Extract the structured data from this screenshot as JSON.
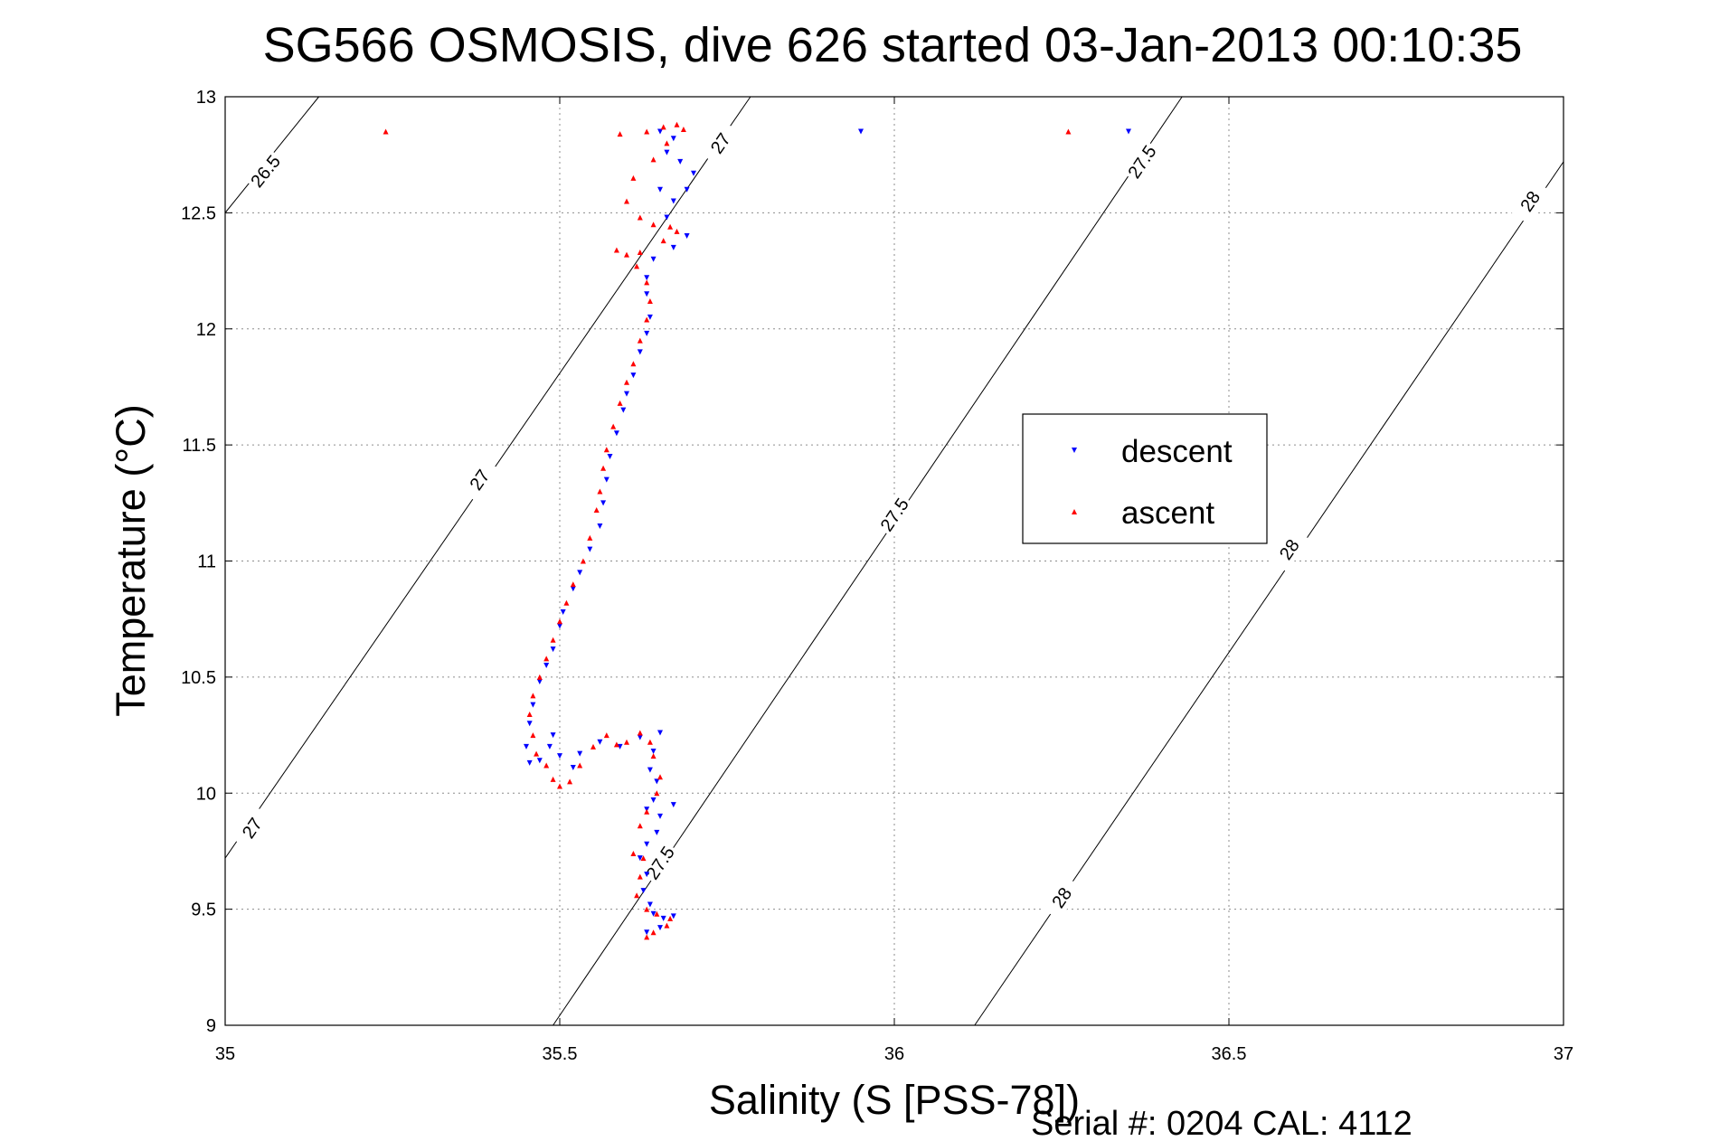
{
  "chart_data": {
    "type": "scatter",
    "title": "SG566 OSMOSIS, dive 626 started 03-Jan-2013 00:10:35",
    "xlabel": "Salinity (S [PSS-78])",
    "ylabel": "Temperature (°C)",
    "xlim": [
      35,
      37
    ],
    "ylim": [
      9,
      13
    ],
    "x_ticks": [
      35,
      35.5,
      36,
      36.5,
      37
    ],
    "y_ticks": [
      9,
      9.5,
      10,
      10.5,
      11,
      11.5,
      12,
      12.5,
      13
    ],
    "x_tick_labels": [
      "35",
      "35.5",
      "36",
      "36.5",
      "37"
    ],
    "y_tick_labels": [
      "9",
      "9.5",
      "10",
      "10.5",
      "11",
      "11.5",
      "12",
      "12.5",
      "13"
    ],
    "grid": true,
    "legend_position": "center-right",
    "footer": "Serial #: 0204  CAL: 4112",
    "density_contours": [
      {
        "level_label": "26.5",
        "points": [
          [
            35,
            12.5
          ],
          [
            35.14,
            13
          ]
        ],
        "label_positions": [
          [
            35.06,
            12.68
          ]
        ]
      },
      {
        "level_label": "27",
        "points": [
          [
            35,
            9.72
          ],
          [
            35.785,
            13
          ]
        ],
        "label_positions": [
          [
            35.04,
            9.85
          ],
          [
            35.38,
            11.35
          ],
          [
            35.74,
            12.8
          ]
        ]
      },
      {
        "level_label": "27.5",
        "points": [
          [
            35.49,
            9
          ],
          [
            36.43,
            13
          ]
        ],
        "label_positions": [
          [
            35.65,
            9.7
          ],
          [
            36.0,
            11.2
          ],
          [
            36.37,
            12.72
          ]
        ]
      },
      {
        "level_label": "28",
        "points": [
          [
            36.12,
            9
          ],
          [
            37,
            12.72
          ]
        ],
        "label_positions": [
          [
            36.25,
            9.55
          ],
          [
            36.59,
            11.05
          ],
          [
            36.95,
            12.55
          ]
        ]
      }
    ],
    "series": [
      {
        "name": "descent",
        "color": "#0000ff",
        "marker": "triangle-down",
        "points": [
          [
            35.95,
            12.85
          ],
          [
            36.35,
            12.85
          ],
          [
            35.65,
            12.85
          ],
          [
            35.67,
            12.82
          ],
          [
            35.66,
            12.76
          ],
          [
            35.68,
            12.72
          ],
          [
            35.7,
            12.67
          ],
          [
            35.69,
            12.6
          ],
          [
            35.67,
            12.55
          ],
          [
            35.65,
            12.6
          ],
          [
            35.66,
            12.48
          ],
          [
            35.69,
            12.4
          ],
          [
            35.67,
            12.35
          ],
          [
            35.64,
            12.3
          ],
          [
            35.63,
            12.22
          ],
          [
            35.63,
            12.15
          ],
          [
            35.635,
            12.05
          ],
          [
            35.63,
            11.98
          ],
          [
            35.62,
            11.9
          ],
          [
            35.61,
            11.8
          ],
          [
            35.6,
            11.72
          ],
          [
            35.595,
            11.65
          ],
          [
            35.585,
            11.55
          ],
          [
            35.575,
            11.45
          ],
          [
            35.57,
            11.35
          ],
          [
            35.565,
            11.25
          ],
          [
            35.56,
            11.15
          ],
          [
            35.545,
            11.05
          ],
          [
            35.53,
            10.95
          ],
          [
            35.52,
            10.88
          ],
          [
            35.505,
            10.78
          ],
          [
            35.5,
            10.72
          ],
          [
            35.49,
            10.62
          ],
          [
            35.48,
            10.55
          ],
          [
            35.47,
            10.48
          ],
          [
            35.46,
            10.38
          ],
          [
            35.455,
            10.3
          ],
          [
            35.45,
            10.2
          ],
          [
            35.455,
            10.13
          ],
          [
            35.47,
            10.14
          ],
          [
            35.485,
            10.2
          ],
          [
            35.49,
            10.25
          ],
          [
            35.5,
            10.16
          ],
          [
            35.52,
            10.11
          ],
          [
            35.53,
            10.17
          ],
          [
            35.56,
            10.22
          ],
          [
            35.59,
            10.2
          ],
          [
            35.62,
            10.24
          ],
          [
            35.65,
            10.26
          ],
          [
            35.64,
            10.18
          ],
          [
            35.635,
            10.1
          ],
          [
            35.645,
            10.05
          ],
          [
            35.64,
            9.97
          ],
          [
            35.63,
            9.93
          ],
          [
            35.65,
            9.9
          ],
          [
            35.67,
            9.95
          ],
          [
            35.645,
            9.83
          ],
          [
            35.63,
            9.78
          ],
          [
            35.62,
            9.72
          ],
          [
            35.63,
            9.65
          ],
          [
            35.625,
            9.58
          ],
          [
            35.635,
            9.52
          ],
          [
            35.64,
            9.48
          ],
          [
            35.655,
            9.46
          ],
          [
            35.67,
            9.47
          ],
          [
            35.65,
            9.42
          ],
          [
            35.63,
            9.4
          ]
        ]
      },
      {
        "name": "ascent",
        "color": "#ff0000",
        "marker": "triangle-up",
        "points": [
          [
            35.24,
            12.85
          ],
          [
            36.26,
            12.85
          ],
          [
            35.59,
            12.84
          ],
          [
            35.63,
            12.85
          ],
          [
            35.655,
            12.87
          ],
          [
            35.675,
            12.88
          ],
          [
            35.685,
            12.86
          ],
          [
            35.66,
            12.8
          ],
          [
            35.64,
            12.73
          ],
          [
            35.61,
            12.65
          ],
          [
            35.6,
            12.55
          ],
          [
            35.62,
            12.48
          ],
          [
            35.64,
            12.45
          ],
          [
            35.665,
            12.44
          ],
          [
            35.675,
            12.42
          ],
          [
            35.655,
            12.38
          ],
          [
            35.62,
            12.33
          ],
          [
            35.6,
            12.32
          ],
          [
            35.585,
            12.34
          ],
          [
            35.615,
            12.27
          ],
          [
            35.63,
            12.2
          ],
          [
            35.635,
            12.12
          ],
          [
            35.63,
            12.04
          ],
          [
            35.62,
            11.95
          ],
          [
            35.61,
            11.85
          ],
          [
            35.6,
            11.77
          ],
          [
            35.59,
            11.68
          ],
          [
            35.58,
            11.58
          ],
          [
            35.57,
            11.48
          ],
          [
            35.565,
            11.4
          ],
          [
            35.56,
            11.3
          ],
          [
            35.555,
            11.22
          ],
          [
            35.545,
            11.1
          ],
          [
            35.535,
            11.0
          ],
          [
            35.52,
            10.9
          ],
          [
            35.51,
            10.82
          ],
          [
            35.5,
            10.74
          ],
          [
            35.49,
            10.66
          ],
          [
            35.48,
            10.58
          ],
          [
            35.47,
            10.5
          ],
          [
            35.46,
            10.42
          ],
          [
            35.455,
            10.34
          ],
          [
            35.46,
            10.25
          ],
          [
            35.465,
            10.17
          ],
          [
            35.48,
            10.12
          ],
          [
            35.49,
            10.06
          ],
          [
            35.5,
            10.03
          ],
          [
            35.515,
            10.05
          ],
          [
            35.53,
            10.12
          ],
          [
            35.55,
            10.2
          ],
          [
            35.57,
            10.25
          ],
          [
            35.585,
            10.21
          ],
          [
            35.6,
            10.22
          ],
          [
            35.62,
            10.26
          ],
          [
            35.635,
            10.22
          ],
          [
            35.64,
            10.16
          ],
          [
            35.65,
            10.07
          ],
          [
            35.645,
            10.0
          ],
          [
            35.63,
            9.92
          ],
          [
            35.62,
            9.86
          ],
          [
            35.61,
            9.74
          ],
          [
            35.625,
            9.72
          ],
          [
            35.62,
            9.64
          ],
          [
            35.615,
            9.56
          ],
          [
            35.63,
            9.5
          ],
          [
            35.645,
            9.48
          ],
          [
            35.665,
            9.46
          ],
          [
            35.66,
            9.43
          ],
          [
            35.64,
            9.4
          ],
          [
            35.63,
            9.38
          ]
        ]
      }
    ]
  }
}
